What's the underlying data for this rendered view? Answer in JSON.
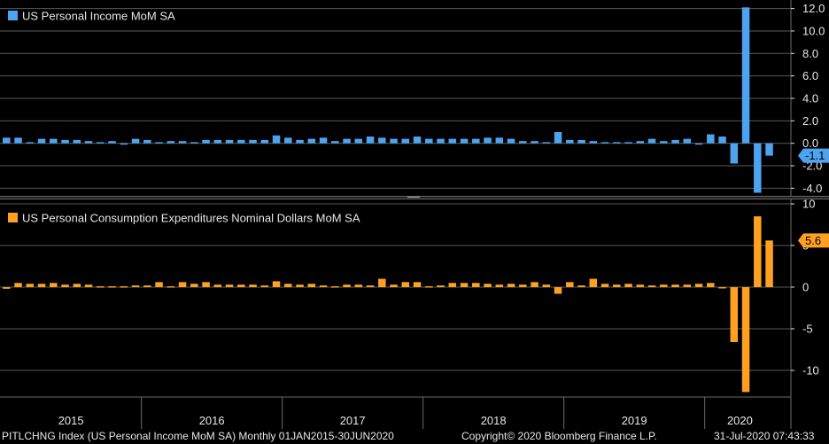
{
  "colors": {
    "background": "#000000",
    "grid": "#5a5a5a",
    "axis_text": "#e6e6e6",
    "income_bar": "#4da3f0",
    "pce_bar": "#ffa020",
    "panel_divider": "#6a6a6a"
  },
  "footer": {
    "left": "PITLCHNG Index (US Personal Income MoM SA)  Monthly 01JAN2015-30JUN2020",
    "center": "Copyright© 2020 Bloomberg Finance L.P.",
    "right": "31-Jul-2020 07:43:33"
  },
  "chart_data": [
    {
      "type": "bar",
      "panel": "top",
      "legend_position": "top-left",
      "title": "",
      "series": [
        {
          "name": "US Personal Income MoM SA",
          "color": "#4da3f0",
          "last_value_label": "-1.1",
          "values": [
            0.5,
            0.5,
            0.1,
            0.4,
            0.4,
            0.3,
            0.3,
            0.2,
            0.1,
            0.2,
            0.0,
            0.4,
            0.3,
            0.1,
            0.2,
            0.2,
            0.1,
            0.3,
            0.3,
            0.3,
            0.3,
            0.3,
            0.3,
            0.7,
            0.5,
            0.3,
            0.4,
            0.5,
            0.2,
            0.4,
            0.4,
            0.6,
            0.5,
            0.4,
            0.4,
            0.6,
            0.4,
            0.4,
            0.4,
            0.4,
            0.4,
            0.5,
            0.5,
            0.4,
            0.2,
            0.2,
            0.1,
            1.0,
            0.3,
            0.3,
            0.2,
            0.1,
            0.1,
            0.1,
            0.2,
            0.4,
            0.2,
            0.3,
            0.4,
            0.0,
            0.8,
            0.6,
            -1.8,
            12.1,
            -4.4,
            -1.1
          ]
        }
      ],
      "ylim": [
        -4.6,
        12.6
      ],
      "y_ticks": [
        {
          "value": 12,
          "label": "12.0"
        },
        {
          "value": 10,
          "label": "10.0"
        },
        {
          "value": 8,
          "label": "8.0"
        },
        {
          "value": 6,
          "label": "6.0"
        },
        {
          "value": 4,
          "label": "4.0"
        },
        {
          "value": 2,
          "label": "2.0"
        },
        {
          "value": 0,
          "label": "0.0"
        },
        {
          "value": -2,
          "label": "-2.0"
        },
        {
          "value": -4,
          "label": "-4.0"
        }
      ],
      "grid": true
    },
    {
      "type": "bar",
      "panel": "bottom",
      "legend_position": "top-left",
      "title": "",
      "series": [
        {
          "name": "US Personal Consumption Expenditures Nominal Dollars MoM SA",
          "color": "#ffa020",
          "last_value_label": "5.6",
          "values": [
            -0.2,
            0.5,
            0.4,
            0.4,
            0.5,
            0.3,
            0.4,
            0.3,
            0.1,
            0.1,
            0.1,
            0.2,
            0.2,
            0.6,
            0.1,
            0.6,
            0.4,
            0.6,
            0.3,
            0.3,
            0.3,
            0.3,
            0.2,
            0.7,
            0.4,
            0.3,
            0.4,
            0.2,
            0.1,
            0.3,
            0.3,
            0.2,
            1.0,
            0.3,
            0.6,
            0.6,
            0.1,
            0.2,
            0.5,
            0.5,
            0.5,
            0.4,
            0.3,
            0.4,
            0.3,
            0.6,
            0.3,
            -0.8,
            0.6,
            0.2,
            1.0,
            0.4,
            0.3,
            0.4,
            0.3,
            0.2,
            0.3,
            0.3,
            0.3,
            0.4,
            0.5,
            -0.1,
            -6.6,
            -12.6,
            8.5,
            5.6
          ]
        }
      ],
      "ylim": [
        -13.2,
        10.0
      ],
      "y_ticks": [
        {
          "value": 10,
          "label": "10"
        },
        {
          "value": 5,
          "label": "5"
        },
        {
          "value": 0,
          "label": "0"
        },
        {
          "value": -5,
          "label": "-5"
        },
        {
          "value": -10,
          "label": "-10"
        }
      ],
      "grid": true
    }
  ],
  "x_axis": {
    "years": [
      "2015",
      "2016",
      "2017",
      "2018",
      "2019",
      "2020"
    ]
  }
}
